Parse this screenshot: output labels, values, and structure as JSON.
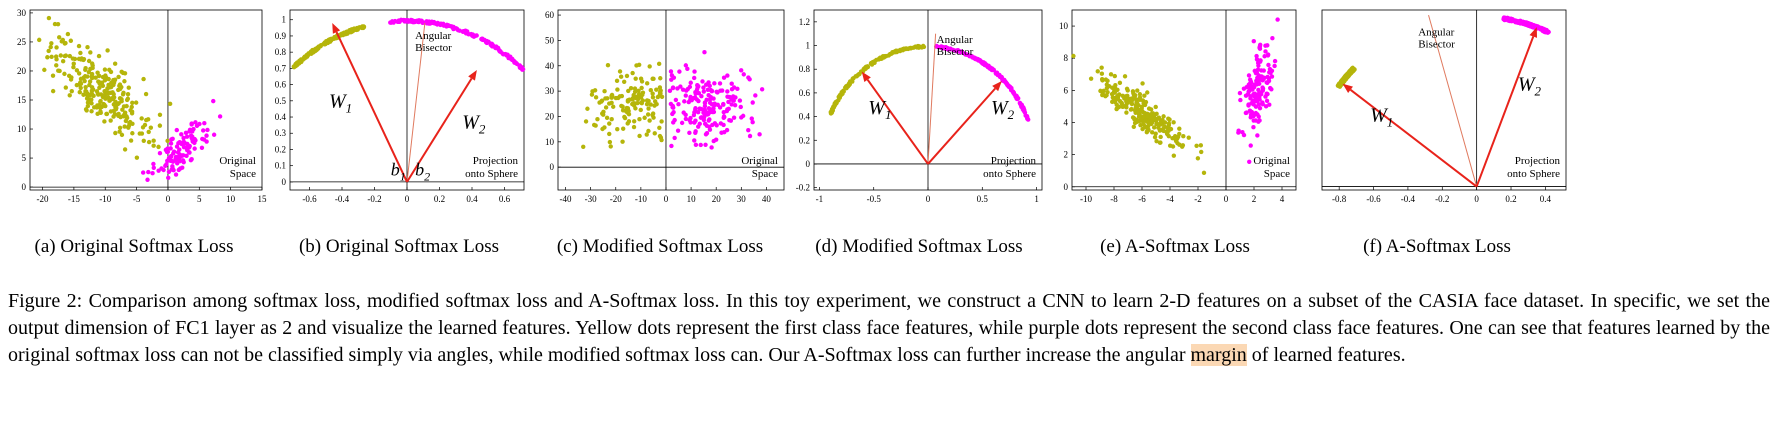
{
  "colors": {
    "class1": "#b5b50a",
    "class2": "#ff00ff",
    "vector": "#e8231b",
    "bisector": "#e07a5f"
  },
  "panels": [
    {
      "id": "a",
      "kind": "original-space",
      "caption": "(a) Original Softmax Loss",
      "label": [
        "Original",
        "Space"
      ],
      "xlim": [
        -22,
        15
      ],
      "ylim": [
        -0.5,
        30.5
      ],
      "xticks": [
        -20,
        -15,
        -10,
        -5,
        0,
        5,
        10,
        15
      ],
      "yticks": [
        0,
        5,
        10,
        15,
        20,
        25,
        30
      ],
      "clusters": [
        {
          "cls": 1,
          "n": 260,
          "cx": -11,
          "cy": 17,
          "sx": 4.2,
          "sy": 4.5,
          "rho": -0.78
        },
        {
          "cls": 2,
          "n": 110,
          "cx": 2.4,
          "cy": 6.8,
          "sx": 2.4,
          "sy": 2.6,
          "rho": 0.72
        }
      ]
    },
    {
      "id": "b",
      "kind": "sphere",
      "caption": "(b) Original Softmax Loss",
      "label": [
        "Projection",
        "onto Sphere"
      ],
      "xlim": [
        -0.72,
        0.72
      ],
      "ylim": [
        -0.05,
        1.06
      ],
      "xticks": [
        -0.6,
        -0.4,
        -0.2,
        0,
        0.2,
        0.4,
        0.6
      ],
      "yticks": [
        0,
        0.1,
        0.2,
        0.3,
        0.4,
        0.5,
        0.6,
        0.7,
        0.8,
        0.9,
        1
      ],
      "arc1": [
        105,
        135
      ],
      "arc2": [
        44,
        96
      ],
      "vectors": [
        {
          "name": "W",
          "sub": "1",
          "x": -0.46,
          "y": 0.98,
          "lx": -0.48,
          "ly": 0.46
        },
        {
          "name": "W",
          "sub": "2",
          "x": 0.43,
          "y": 0.69,
          "lx": 0.34,
          "ly": 0.33
        }
      ],
      "bisector": {
        "x": 0.11,
        "y": 0.98,
        "text": [
          "Angular",
          "Bisector"
        ],
        "tx": 0.05,
        "ty": 0.88
      },
      "biases": [
        {
          "name": "b",
          "sub": "1",
          "x": -0.1,
          "y": 0.04
        },
        {
          "name": "b",
          "sub": "2",
          "x": 0.05,
          "y": 0.04
        }
      ]
    },
    {
      "id": "c",
      "kind": "original-space",
      "caption": "(c) Modified Softmax Loss",
      "label": [
        "Original",
        "Space"
      ],
      "xlim": [
        -43,
        47
      ],
      "ylim": [
        -9,
        62
      ],
      "xticks": [
        -40,
        -30,
        -20,
        -10,
        0,
        10,
        20,
        30,
        40
      ],
      "yticks": [
        0,
        10,
        20,
        30,
        40,
        50,
        60
      ],
      "clusters": [
        {
          "cls": 1,
          "n": 140,
          "cx": -14,
          "cy": 24,
          "sx": 8.5,
          "sy": 6.5,
          "rho": 0.05,
          "xmax": -1.5
        },
        {
          "cls": 2,
          "n": 190,
          "cx": 17,
          "cy": 25,
          "sx": 10,
          "sy": 7.5,
          "rho": 0.1,
          "xmin": 1.5
        }
      ]
    },
    {
      "id": "d",
      "kind": "sphere",
      "caption": "(d) Modified Softmax Loss",
      "label": [
        "Projection",
        "onto Sphere"
      ],
      "xlim": [
        -1.05,
        1.05
      ],
      "ylim": [
        -0.22,
        1.3
      ],
      "xticks": [
        -1,
        -0.5,
        0,
        0.5,
        1
      ],
      "yticks": [
        -0.2,
        0,
        0.2,
        0.4,
        0.6,
        0.8,
        1,
        1.2
      ],
      "arc1": [
        92,
        155
      ],
      "arc2": [
        22,
        86
      ],
      "vectors": [
        {
          "name": "W",
          "sub": "1",
          "x": -0.61,
          "y": 0.78,
          "lx": -0.55,
          "ly": 0.42
        },
        {
          "name": "W",
          "sub": "2",
          "x": 0.68,
          "y": 0.7,
          "lx": 0.58,
          "ly": 0.42
        }
      ],
      "bisector": {
        "x": 0.07,
        "y": 1.1,
        "text": [
          "Angular",
          "Bisector"
        ],
        "tx": 0.08,
        "ty": 1.02
      }
    },
    {
      "id": "e",
      "kind": "original-space",
      "caption": "(e) A-Softmax Loss",
      "label": [
        "Original",
        "Space"
      ],
      "xlim": [
        -11,
        5
      ],
      "ylim": [
        -0.2,
        11
      ],
      "xticks": [
        -10,
        -8,
        -6,
        -4,
        -2,
        0,
        2,
        4
      ],
      "yticks": [
        0,
        2,
        4,
        6,
        8,
        10
      ],
      "clusters": [
        {
          "cls": 1,
          "n": 240,
          "cx": -6,
          "cy": 4.6,
          "sx": 1.55,
          "sy": 1.1,
          "rho": -0.88
        },
        {
          "cls": 2,
          "n": 150,
          "cx": 2.2,
          "cy": 6.2,
          "sx": 0.55,
          "sy": 1.3,
          "rho": 0.55
        }
      ]
    },
    {
      "id": "f",
      "kind": "sphere",
      "caption": "(f) A-Softmax Loss",
      "label": [
        "Projection",
        "onto Sphere"
      ],
      "xlim": [
        -0.9,
        0.52
      ],
      "ylim": [
        -0.02,
        1.03
      ],
      "xticks": [
        -0.8,
        -0.6,
        -0.4,
        -0.2,
        0,
        0.2,
        0.4
      ],
      "yticks": [],
      "arc1": [
        136,
        144
      ],
      "arc2": [
        65,
        81
      ],
      "vectors": [
        {
          "name": "W",
          "sub": "1",
          "x": -0.78,
          "y": 0.6,
          "lx": -0.62,
          "ly": 0.38
        },
        {
          "name": "W",
          "sub": "2",
          "x": 0.35,
          "y": 0.93,
          "lx": 0.24,
          "ly": 0.56
        }
      ],
      "bisector": {
        "x": -0.28,
        "y": 1.0,
        "text": [
          "Angular",
          "Bisector"
        ],
        "tx": -0.34,
        "ty": 0.88
      }
    }
  ],
  "caption": {
    "before": "Figure 2: Comparison among softmax loss, modified softmax loss and A-Softmax loss. In this toy experiment, we construct a CNN to learn 2-D features on a subset of the CASIA face dataset. In specific, we set the output dimension of FC1 layer as 2 and visualize the learned features. Yellow dots represent the first class face features, while purple dots represent the second class face features. One can see that features learned by the original softmax loss can not be classified simply via angles, while modified softmax loss can. Our A-Softmax loss can further increase the angular ",
    "highlight": "margin",
    "after": " of learned features."
  }
}
